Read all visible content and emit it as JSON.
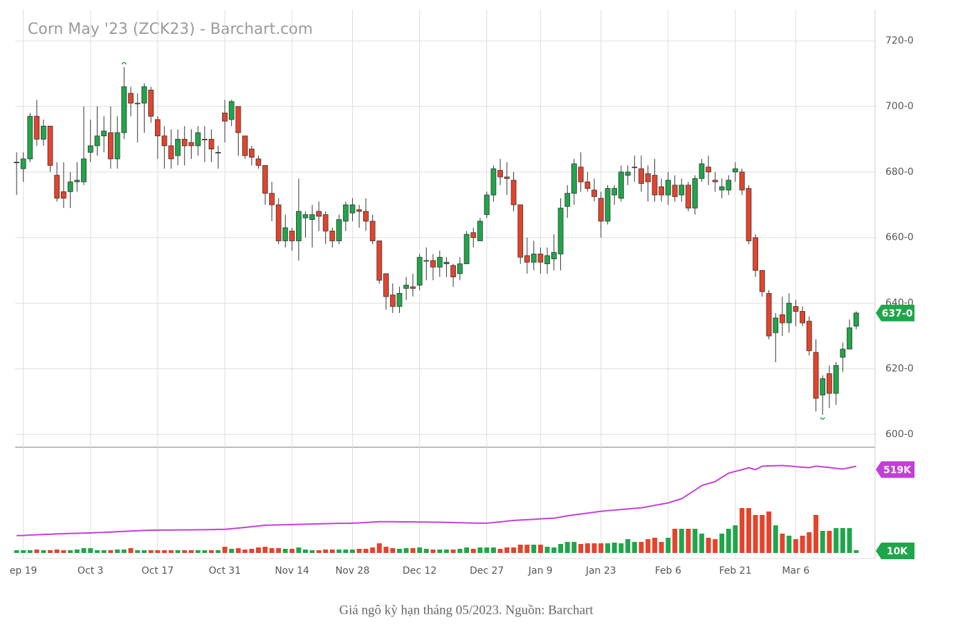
{
  "chart_data": {
    "type": "candlestick",
    "title": "Corn May '23 (ZCK23) - Barchart.com",
    "categories": [
      null,
      "ep 19",
      null,
      null,
      null,
      null,
      null,
      null,
      null,
      null,
      null,
      "Oct 3",
      null,
      null,
      null,
      null,
      null,
      null,
      null,
      null,
      null,
      "Oct 17",
      null,
      null,
      null,
      null,
      null,
      null,
      null,
      null,
      null,
      "Oct 31",
      null,
      null,
      null,
      null,
      null,
      null,
      null,
      null,
      null,
      "Nov 14",
      null,
      null,
      null,
      null,
      null,
      null,
      null,
      null,
      "Nov 28",
      null,
      null,
      null,
      null,
      null,
      null,
      null,
      null,
      null,
      "Dec 12",
      null,
      null,
      null,
      null,
      null,
      null,
      null,
      null,
      null,
      "Dec 27",
      null,
      null,
      null,
      null,
      null,
      null,
      null,
      "Jan 9",
      null,
      null,
      null,
      null,
      null,
      null,
      null,
      null,
      "Jan 23",
      null,
      null,
      null,
      null,
      null,
      null,
      null,
      null,
      null,
      "Feb 6",
      null,
      null,
      null,
      null,
      null,
      null,
      null,
      null,
      null,
      "Feb 21",
      null,
      null,
      null,
      null,
      null,
      null,
      null,
      null,
      "Mar 6",
      null,
      null,
      null,
      null,
      null,
      null,
      null,
      null,
      null
    ],
    "open": [
      683,
      681,
      684,
      697,
      690,
      694,
      679,
      674,
      674,
      677,
      677,
      686,
      688,
      691,
      692,
      684,
      692,
      704,
      701,
      701,
      705,
      696,
      691,
      688,
      685,
      690,
      689,
      688,
      690,
      690,
      686,
      698,
      696,
      700,
      691,
      687,
      684,
      682,
      673.5,
      670,
      659,
      662,
      659,
      666,
      665.5,
      668,
      667,
      662,
      659,
      665,
      667.5,
      668.5,
      668,
      665,
      659,
      649,
      642.5,
      639,
      644.5,
      645,
      645.5,
      653,
      653,
      651,
      652,
      651.5,
      649,
      652,
      661.5,
      659,
      667,
      673,
      680.5,
      678.5,
      677.5,
      670,
      654.5,
      652.5,
      655,
      652,
      653.5,
      655,
      669.5,
      673.5,
      681.5,
      677,
      674.5,
      672,
      665,
      673,
      672,
      679,
      681.5,
      681,
      679.5,
      679,
      675.5,
      673,
      676,
      673,
      676,
      669,
      678,
      681.5,
      677.5,
      674.5,
      674.5,
      680,
      680,
      675,
      660,
      650,
      643,
      631,
      636.5,
      634,
      639,
      637.5,
      634.5,
      625,
      612,
      618.5,
      612.5,
      623.5,
      626,
      633
    ],
    "high": [
      686,
      686,
      698,
      702,
      696,
      694,
      683,
      683,
      680,
      683,
      700,
      696,
      700,
      697,
      700,
      697,
      712,
      706,
      704,
      707,
      706,
      697,
      694,
      693,
      693,
      694,
      693,
      694,
      694,
      693,
      688,
      702,
      702,
      700,
      691,
      688,
      685,
      682,
      677,
      672,
      667,
      663,
      678,
      668,
      670,
      671,
      668,
      663,
      667,
      671,
      672,
      670,
      672,
      667,
      659,
      649,
      646,
      645,
      648,
      649,
      655,
      657,
      655,
      656,
      654,
      652,
      654,
      662,
      663,
      666,
      674,
      682,
      684,
      683,
      680,
      670,
      660,
      659,
      657,
      657,
      661,
      672,
      676,
      684,
      686,
      680,
      678,
      674,
      676,
      676,
      682,
      682,
      685,
      685,
      682,
      684,
      678,
      680,
      679,
      678,
      677,
      679,
      684,
      685,
      680,
      678,
      679,
      683,
      681,
      676,
      661,
      650,
      644,
      637,
      642,
      643,
      641,
      639,
      636,
      629,
      618,
      621,
      622,
      628,
      635,
      637.5
    ],
    "low": [
      673,
      677,
      683,
      688,
      688,
      680,
      671,
      669,
      669,
      674,
      676,
      683,
      685,
      686,
      681,
      681,
      690,
      697,
      689,
      692,
      695,
      684,
      681,
      681,
      682,
      682,
      684,
      685,
      683,
      683,
      681,
      689,
      694,
      685,
      684,
      682,
      681,
      670,
      665,
      658,
      657,
      656,
      653,
      660,
      657,
      662,
      658,
      657,
      658,
      662,
      665,
      663,
      662,
      658,
      646,
      638,
      637,
      637,
      641,
      642,
      644,
      647,
      647,
      648,
      648,
      645,
      647,
      652,
      657,
      659,
      666,
      671,
      676,
      673,
      668,
      652,
      649,
      650,
      649,
      649,
      650,
      650,
      666,
      670,
      674,
      674,
      671,
      660,
      664,
      670,
      671,
      676,
      677,
      674,
      671,
      671,
      671,
      670,
      671,
      671,
      668,
      667,
      677,
      676,
      674,
      672,
      673,
      677,
      673,
      658,
      648,
      642,
      629,
      622,
      630,
      631,
      633,
      633,
      624,
      607,
      606,
      608,
      609,
      619,
      626,
      632
    ],
    "close": [
      683,
      684,
      697,
      690,
      694,
      682,
      672,
      672,
      677,
      677.5,
      684,
      688,
      691,
      692.5,
      684,
      692,
      706,
      701,
      701,
      706,
      697,
      691,
      688,
      684,
      690,
      688,
      688,
      692,
      690,
      687,
      686,
      695.5,
      701.5,
      692,
      685,
      684.5,
      682,
      673.5,
      670,
      659,
      663,
      659,
      668,
      667,
      667,
      666.5,
      662,
      659,
      665.5,
      670,
      670,
      668,
      665,
      659,
      647,
      642,
      639,
      643,
      645.5,
      644.5,
      654,
      653,
      651,
      654,
      652.5,
      648,
      652,
      661,
      660,
      665,
      673,
      681,
      678.5,
      678,
      670,
      654,
      652.5,
      655,
      652.5,
      654.5,
      655.5,
      669,
      673.5,
      682.5,
      677,
      675,
      672.5,
      665,
      675,
      675,
      680,
      680,
      681.5,
      676.5,
      677,
      673,
      673,
      677.5,
      672.5,
      676,
      669,
      678,
      682.5,
      680,
      677,
      675.5,
      677.5,
      681,
      674.5,
      659,
      650,
      643.5,
      630,
      635.5,
      634,
      640,
      637.5,
      634,
      625.5,
      611,
      617,
      612.5,
      621,
      626,
      632.5,
      637
    ],
    "up_color": "#1fa64a",
    "down_color": "#e5432b",
    "ylim": [
      596.5,
      729.5
    ],
    "yticks": [
      {
        "value": 600,
        "label": "600-0"
      },
      {
        "value": 620,
        "label": "620-0"
      },
      {
        "value": 640,
        "label": "640-0"
      },
      {
        "value": 660,
        "label": "660-0"
      },
      {
        "value": 680,
        "label": "680-0"
      },
      {
        "value": 700,
        "label": "700-0"
      },
      {
        "value": 720,
        "label": "720-0"
      }
    ],
    "grid": true,
    "last_price_label": "637-0",
    "volume": {
      "ylim": [
        0,
        375000
      ],
      "last_label": "10K",
      "values": [
        10000,
        10000,
        10000,
        12500,
        10000,
        10000,
        12500,
        10000,
        10000,
        12500,
        17500,
        17500,
        10000,
        10000,
        10000,
        12500,
        12500,
        17500,
        10000,
        10000,
        10000,
        10000,
        10000,
        10000,
        10000,
        10000,
        10000,
        10000,
        10000,
        10000,
        10000,
        22500,
        15000,
        17500,
        12500,
        15000,
        20000,
        22500,
        17500,
        17500,
        15000,
        15000,
        20000,
        12500,
        10000,
        10000,
        12500,
        12500,
        12500,
        12500,
        12500,
        15000,
        15000,
        20000,
        35000,
        22500,
        17500,
        15000,
        17500,
        17500,
        20000,
        15000,
        12500,
        12500,
        12500,
        12500,
        15000,
        20000,
        15000,
        20000,
        20000,
        20000,
        15000,
        20000,
        20000,
        30000,
        30000,
        30000,
        30000,
        22500,
        20000,
        32500,
        40000,
        40000,
        32500,
        35000,
        35000,
        35000,
        35000,
        37500,
        35000,
        50000,
        40000,
        40000,
        50000,
        55000,
        40000,
        55000,
        87500,
        87500,
        87500,
        87500,
        70000,
        55000,
        50000,
        70000,
        87500,
        100000,
        162500,
        162500,
        137500,
        137500,
        150000,
        100000,
        70000,
        62500,
        50000,
        62500,
        75000,
        137500,
        80000,
        80000,
        90000,
        90000,
        90000,
        10000
      ]
    },
    "open_interest": {
      "ylim": [
        0,
        620000
      ],
      "color": "#c23fd6",
      "last_label": "519K",
      "values": [
        104000,
        105000,
        107000,
        109000,
        111000,
        112000,
        114000,
        115000,
        117000,
        118000,
        119000,
        120000,
        122000,
        123000,
        125000,
        127000,
        129000,
        131000,
        133000,
        135000,
        136000,
        137000,
        137000,
        137000,
        138000,
        138000,
        138000,
        139000,
        139000,
        140000,
        141000,
        141000,
        145000,
        149000,
        153000,
        157000,
        161000,
        166000,
        167000,
        168000,
        169000,
        170000,
        171000,
        172000,
        173000,
        174000,
        175000,
        176000,
        177000,
        177000,
        178000,
        180000,
        182000,
        185000,
        187000,
        187000,
        187000,
        186000,
        186000,
        186000,
        185000,
        185000,
        184000,
        184000,
        183000,
        182000,
        181000,
        180000,
        179000,
        178000,
        178000,
        182000,
        186000,
        190000,
        195000,
        197000,
        199000,
        201000,
        204000,
        206000,
        208000,
        215000,
        222000,
        228000,
        233000,
        238000,
        244000,
        249000,
        253000,
        256000,
        260000,
        263000,
        267000,
        270000,
        277000,
        285000,
        292000,
        299000,
        312000,
        324000,
        350000,
        376000,
        403000,
        415000,
        427000,
        452000,
        477000,
        488000,
        498000,
        510000,
        498000,
        519000,
        521000,
        522000,
        523000,
        520000,
        516000,
        513000,
        510000,
        519000,
        515000,
        511000,
        506000,
        502000,
        510000,
        519000
      ]
    }
  },
  "caption": "Giá ngô kỳ hạn tháng 05/2023. Nguồn: Barchart"
}
